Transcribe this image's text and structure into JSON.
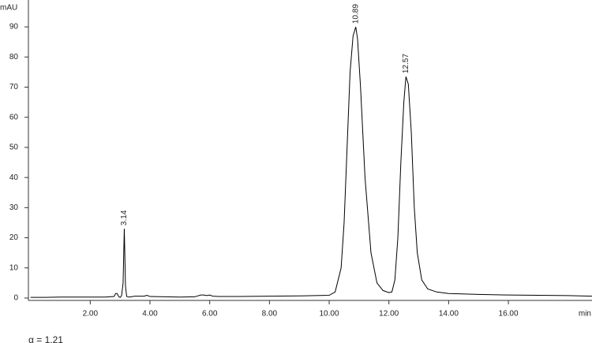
{
  "chart_data": {
    "type": "line",
    "y_label": "mAU",
    "x_label": "min",
    "note": "α = 1.21",
    "color": "#000000",
    "x": [
      0,
      0.5,
      1,
      1.5,
      2,
      2.5,
      2.8,
      2.85,
      2.9,
      2.95,
      3.0,
      3.05,
      3.1,
      3.14,
      3.18,
      3.22,
      3.3,
      3.5,
      3.8,
      3.9,
      4.0,
      4.5,
      5,
      5.5,
      5.7,
      5.8,
      5.9,
      6.0,
      6.1,
      6.3,
      7,
      8,
      9,
      10,
      10.2,
      10.4,
      10.5,
      10.6,
      10.7,
      10.8,
      10.89,
      10.95,
      11.05,
      11.2,
      11.4,
      11.6,
      11.8,
      12.0,
      12.1,
      12.2,
      12.3,
      12.4,
      12.5,
      12.57,
      12.65,
      12.75,
      12.85,
      12.95,
      13.1,
      13.3,
      13.6,
      14,
      15,
      16,
      17,
      18,
      18.8
    ],
    "values": [
      0.2,
      0.2,
      0.3,
      0.3,
      0.3,
      0.3,
      0.5,
      1.5,
      1.5,
      0.5,
      0.2,
      0.8,
      5,
      23,
      4,
      0.5,
      0.3,
      0.6,
      0.6,
      0.9,
      0.5,
      0.4,
      0.3,
      0.4,
      1.0,
      1.0,
      0.8,
      1.0,
      0.6,
      0.5,
      0.5,
      0.6,
      0.7,
      0.9,
      2,
      10,
      25,
      50,
      75,
      87,
      90,
      86,
      70,
      40,
      15,
      5,
      2.5,
      1.8,
      2,
      6,
      20,
      45,
      65,
      73.5,
      71,
      55,
      30,
      15,
      6,
      3,
      2,
      1.5,
      1.2,
      1.0,
      0.9,
      0.8,
      0.6
    ],
    "peaks": [
      {
        "time": 3.14,
        "height": 23
      },
      {
        "time": 10.89,
        "height": 90
      },
      {
        "time": 12.57,
        "height": 73.5
      }
    ],
    "xlim": [
      -0.07,
      18.8
    ],
    "ylim": [
      -0.8,
      98.4
    ],
    "xticks": [
      {
        "value": 2,
        "label": "2.00"
      },
      {
        "value": 4,
        "label": "4.00"
      },
      {
        "value": 6,
        "label": "6.00"
      },
      {
        "value": 8,
        "label": "8.00"
      },
      {
        "value": 10,
        "label": "10.00"
      },
      {
        "value": 12,
        "label": "12.00"
      },
      {
        "value": 14,
        "label": "14.00"
      },
      {
        "value": 16,
        "label": "16.00"
      }
    ],
    "yticks": [
      0,
      10,
      20,
      30,
      40,
      50,
      60,
      70,
      80,
      90
    ]
  }
}
